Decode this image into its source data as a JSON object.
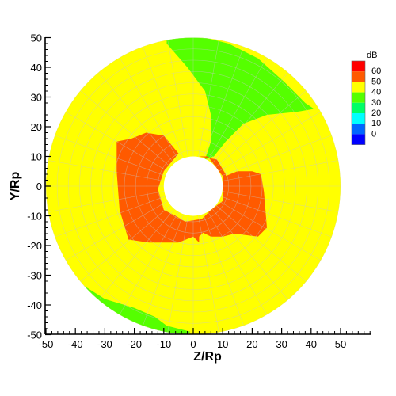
{
  "chart_data": {
    "type": "contour",
    "xlabel": "Z/Rp",
    "ylabel": "Y/Rp",
    "xlim": [
      -50,
      50
    ],
    "ylim": [
      -50,
      50
    ],
    "x_ticks": [
      -50,
      -40,
      -30,
      -20,
      -10,
      0,
      10,
      20,
      30,
      40,
      50
    ],
    "y_ticks": [
      -50,
      -40,
      -30,
      -20,
      -10,
      0,
      10,
      20,
      30,
      40,
      50
    ],
    "domain": {
      "outer_radius": 50,
      "inner_radius": 10
    },
    "grid": true,
    "legend": {
      "title": "dB",
      "placement": "top-right",
      "levels": [
        {
          "label": "60",
          "color": "#ff0000"
        },
        {
          "label": "50",
          "color": "#ff5a00"
        },
        {
          "label": "40",
          "color": "#ffff00"
        },
        {
          "label": "30",
          "color": "#55ff00"
        },
        {
          "label": "20",
          "color": "#00ff66"
        },
        {
          "label": "10",
          "color": "#00ffff"
        },
        {
          "label": "0",
          "color": "#0066ff"
        },
        {
          "label": "",
          "color": "#0000ff"
        }
      ]
    },
    "regions": [
      {
        "level": "40-50 dB",
        "color": "#ffff00",
        "shape": "annulus background"
      },
      {
        "level": "30-40 dB",
        "color": "#55ff00",
        "points": [
          [
            -9,
            50
          ],
          [
            0,
            51
          ],
          [
            12,
            48
          ],
          [
            22,
            43
          ],
          [
            31,
            35
          ],
          [
            38,
            28
          ],
          [
            41,
            26
          ],
          [
            35,
            25
          ],
          [
            25,
            24
          ],
          [
            17,
            21
          ],
          [
            11,
            15
          ],
          [
            7,
            10
          ],
          [
            4,
            9
          ],
          [
            6,
            15
          ],
          [
            6,
            24
          ],
          [
            4,
            32
          ],
          [
            -2,
            40
          ],
          [
            -9,
            48
          ]
        ]
      },
      {
        "level": "30-40 dB",
        "color": "#55ff00",
        "points": [
          [
            -38,
            -33
          ],
          [
            -30,
            -38
          ],
          [
            -20,
            -41
          ],
          [
            -13,
            -44
          ],
          [
            -9,
            -47
          ],
          [
            -1,
            -49
          ],
          [
            -2,
            -50
          ],
          [
            -6,
            -50
          ],
          [
            -16,
            -49
          ],
          [
            -26,
            -45
          ],
          [
            -34,
            -38
          ]
        ]
      },
      {
        "level": "50-60 dB",
        "color": "#ff5a00",
        "points": [
          [
            -26,
            15
          ],
          [
            -21,
            16
          ],
          [
            -16,
            18
          ],
          [
            -10,
            17
          ],
          [
            -5,
            11
          ],
          [
            -10,
            5
          ],
          [
            -12,
            -1
          ],
          [
            -10,
            -8
          ],
          [
            -6,
            -10
          ],
          [
            -1,
            -13
          ],
          [
            2,
            -15
          ],
          [
            6,
            -17
          ],
          [
            10,
            -17
          ],
          [
            14,
            -16
          ],
          [
            18,
            -14
          ],
          [
            20,
            -9
          ],
          [
            18,
            -3
          ],
          [
            14,
            2
          ],
          [
            11,
            2
          ],
          [
            8,
            6
          ],
          [
            5,
            10
          ],
          [
            2,
            10
          ],
          [
            8,
            9
          ],
          [
            11,
            4
          ],
          [
            12,
            -1
          ],
          [
            10,
            -9
          ],
          [
            6,
            -12
          ],
          [
            0,
            -17
          ],
          [
            -5,
            -19
          ],
          [
            -15,
            -19
          ],
          [
            -22,
            -18
          ],
          [
            -25,
            -8
          ],
          [
            -26,
            5
          ]
        ]
      },
      {
        "level": "50-60 dB",
        "color": "#ff5a00",
        "points": [
          [
            2,
            -19
          ],
          [
            2,
            -17
          ],
          [
            4,
            -15
          ],
          [
            14,
            -16
          ],
          [
            22,
            -17
          ],
          [
            25,
            -14
          ],
          [
            24,
            -2
          ],
          [
            23,
            4
          ],
          [
            20,
            5
          ],
          [
            15,
            5
          ],
          [
            10,
            3
          ],
          [
            10,
            -5
          ],
          [
            6,
            -8
          ],
          [
            3,
            -11
          ],
          [
            -3,
            -12
          ],
          [
            -4,
            -12
          ],
          [
            -3,
            -13
          ],
          [
            -1,
            -16
          ]
        ]
      }
    ]
  }
}
